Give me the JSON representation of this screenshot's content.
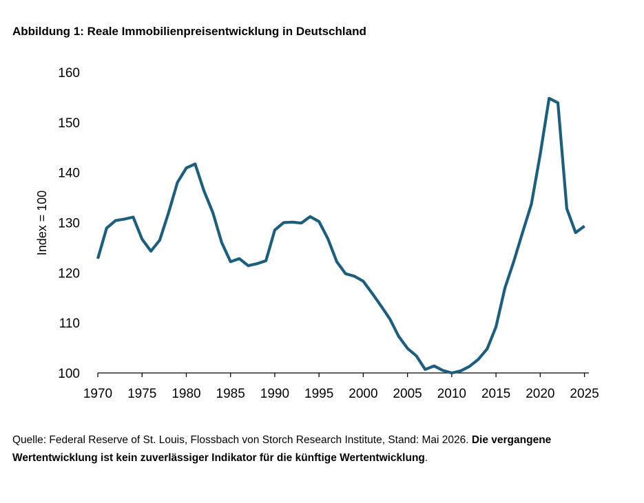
{
  "title": "Abbildung 1: Reale Immobilienpreisentwicklung in Deutschland",
  "footnote": {
    "source": "Quelle: Federal Reserve of St. Louis, Flossbach von Storch Research Institute, Stand: Mai 2026.",
    "disclaimer": "Die vergangene Wertentwicklung ist kein zuverlässiger Indikator für die künftige Wertentwicklung",
    "end": "."
  },
  "colors": {
    "line": "#1b5e7e",
    "axis": "#000000"
  },
  "chart_data": {
    "type": "line",
    "title": "",
    "xlabel": "",
    "ylabel": "Index = 100",
    "xlim": [
      1970,
      2025.5
    ],
    "ylim": [
      100,
      160
    ],
    "x_ticks": [
      1970,
      1975,
      1980,
      1985,
      1990,
      1995,
      2000,
      2005,
      2010,
      2015,
      2020,
      2025
    ],
    "y_ticks": [
      100,
      110,
      120,
      130,
      140,
      150,
      160
    ],
    "grid": false,
    "series": [
      {
        "name": "",
        "x": [
          1970,
          1971,
          1972,
          1973,
          1974,
          1975,
          1976,
          1977,
          1978,
          1979,
          1980,
          1981,
          1982,
          1983,
          1984,
          1985,
          1986,
          1987,
          1988,
          1989,
          1990,
          1991,
          1992,
          1993,
          1994,
          1995,
          1996,
          1997,
          1998,
          1999,
          2000,
          2001,
          2002,
          2003,
          2004,
          2005,
          2006,
          2007,
          2008,
          2009,
          2010,
          2011,
          2012,
          2013,
          2014,
          2015,
          2016,
          2017,
          2018,
          2019,
          2020,
          2021,
          2022,
          2023,
          2024,
          2025
        ],
        "y": [
          122.8,
          128.9,
          130.4,
          130.7,
          131.1,
          126.7,
          124.3,
          126.5,
          132.0,
          138.0,
          140.9,
          141.7,
          136.3,
          132.0,
          126.0,
          122.2,
          122.8,
          121.4,
          121.8,
          122.4,
          128.5,
          130.0,
          130.1,
          129.9,
          131.2,
          130.2,
          126.8,
          122.2,
          119.8,
          119.3,
          118.3,
          115.9,
          113.4,
          110.8,
          107.3,
          104.9,
          103.4,
          100.7,
          101.4,
          100.5,
          100.0,
          100.4,
          101.3,
          102.7,
          104.8,
          109.2,
          116.9,
          122.2,
          128.0,
          133.7,
          143.6,
          154.8,
          153.9,
          132.8,
          128.0,
          129.3
        ]
      }
    ]
  }
}
